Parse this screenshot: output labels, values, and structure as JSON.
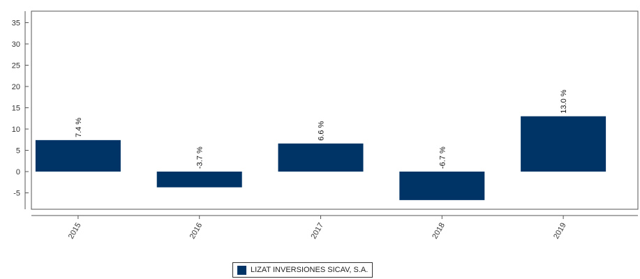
{
  "chart_data": {
    "type": "bar",
    "categories": [
      "2015",
      "2016",
      "2017",
      "2018",
      "2019"
    ],
    "series": [
      {
        "name": "LIZAT INVERSIONES SICAV, S.A.",
        "values": [
          7.4,
          -3.7,
          6.6,
          -6.7,
          13.0
        ],
        "labels": [
          "7.4 %",
          "-3.7 %",
          "6.6 %",
          "-6.7 %",
          "13.0 %"
        ],
        "color": "#003366"
      }
    ],
    "y_ticks": [
      "35",
      "30",
      "25",
      "20",
      "15",
      "10",
      "5",
      "0",
      "-5"
    ],
    "ylim": [
      -9,
      38
    ],
    "grid": false,
    "legend_position": "bottom-center"
  }
}
